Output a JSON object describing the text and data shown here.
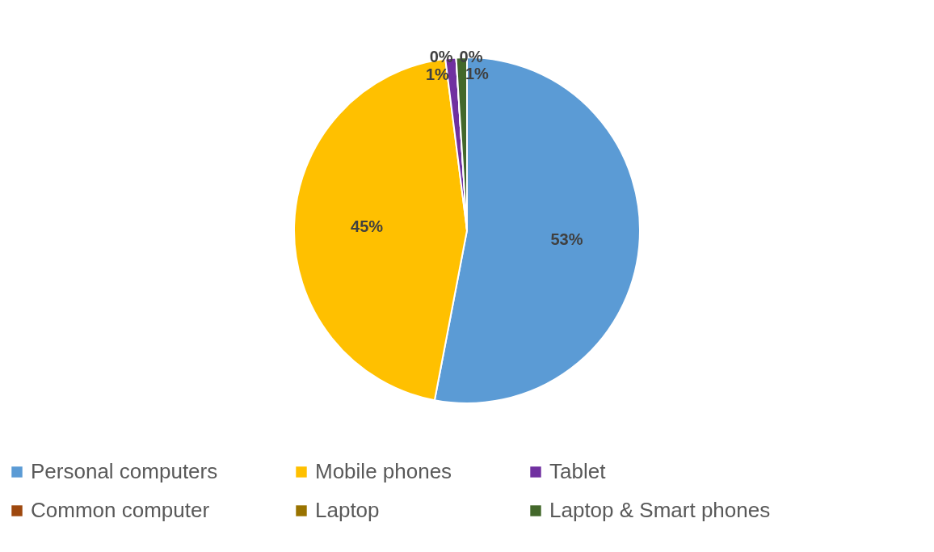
{
  "chart_data": {
    "type": "pie",
    "categories": [
      "Personal computers",
      "Mobile phones",
      "Tablet",
      "Common computer",
      "Laptop",
      "Laptop & Smart phones"
    ],
    "values": [
      53,
      45,
      1,
      0,
      0,
      1
    ],
    "colors": [
      "#5b9bd5",
      "#ffc000",
      "#7030a0",
      "#9e480e",
      "#997300",
      "#43682b"
    ],
    "value_labels": [
      "53%",
      "45%",
      "1%",
      "0%",
      "0%",
      "1%"
    ],
    "legend": "bottom"
  }
}
